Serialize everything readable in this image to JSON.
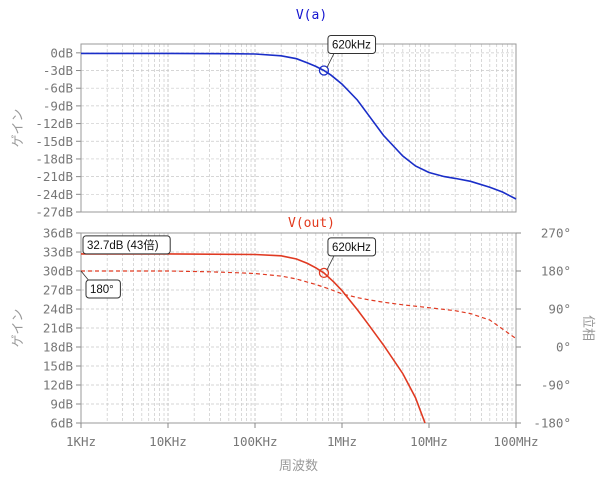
{
  "chart_data": [
    {
      "type": "line",
      "title": "V(a)",
      "title_color": "#1515d0",
      "xscale": "log",
      "xlim": [
        1000,
        100000000
      ],
      "ylim": [
        -27,
        1.5
      ],
      "yticks": [
        0,
        -3,
        -6,
        -9,
        -12,
        -15,
        -18,
        -21,
        -24,
        -27
      ],
      "ytick_labels": [
        "0dB",
        "-3dB",
        "-6dB",
        "-9dB",
        "-12dB",
        "-15dB",
        "-18dB",
        "-21dB",
        "-24dB",
        "-27dB"
      ],
      "ylabel": "ゲイン",
      "grid": true,
      "series": [
        {
          "color": "#1a2ec8",
          "style": "solid",
          "x": [
            1000,
            10000,
            50000,
            100000,
            200000,
            300000,
            400000,
            500000,
            620000,
            750000,
            1000000,
            1500000,
            2000000,
            3000000,
            5000000,
            7000000,
            10000000,
            15000000,
            20000000,
            30000000,
            50000000,
            70000000,
            100000000
          ],
          "values": [
            -0.1,
            -0.1,
            -0.15,
            -0.2,
            -0.5,
            -1.0,
            -1.7,
            -2.3,
            -3.0,
            -3.8,
            -5.3,
            -8.0,
            -10.5,
            -14.0,
            -17.5,
            -19.2,
            -20.3,
            -21.0,
            -21.3,
            -21.8,
            -22.8,
            -23.6,
            -24.8
          ]
        }
      ],
      "annotations": [
        {
          "text": "620kHz",
          "x": 620000,
          "y": -3,
          "marker": "circle"
        }
      ]
    },
    {
      "type": "line",
      "title": "V(out)",
      "title_color": "#e23a1e",
      "xscale": "log",
      "xlim": [
        1000,
        100000000
      ],
      "ylim": [
        6,
        36
      ],
      "yticks": [
        36,
        33,
        30,
        27,
        24,
        21,
        18,
        15,
        12,
        9,
        6
      ],
      "ytick_labels": [
        "36dB",
        "33dB",
        "30dB",
        "27dB",
        "24dB",
        "21dB",
        "18dB",
        "15dB",
        "12dB",
        "9dB",
        "6dB"
      ],
      "ylabel": "ゲイン",
      "y2lim": [
        -180,
        270
      ],
      "y2ticks": [
        270,
        180,
        90,
        0,
        -90,
        -180
      ],
      "y2tick_labels": [
        "270°",
        "180°",
        "90°",
        "0°",
        "-90°",
        "-180°"
      ],
      "y2label": "位相",
      "xticks": [
        1000,
        10000,
        100000,
        1000000,
        10000000,
        100000000
      ],
      "xtick_labels": [
        "1KHz",
        "10KHz",
        "100KHz",
        "1MHz",
        "10MHz",
        "100MHz"
      ],
      "xlabel": "周波数",
      "grid": true,
      "series": [
        {
          "color": "#e03a22",
          "style": "solid",
          "axis": "gain",
          "x": [
            1000,
            10000,
            100000,
            200000,
            300000,
            400000,
            500000,
            620000,
            800000,
            1000000,
            1500000,
            2000000,
            3000000,
            5000000,
            7000000,
            9000000
          ],
          "values": [
            32.7,
            32.7,
            32.6,
            32.4,
            31.9,
            31.2,
            30.5,
            29.7,
            28.3,
            26.9,
            23.9,
            21.6,
            18.3,
            13.8,
            10.0,
            6.0
          ]
        },
        {
          "color": "#e03a22",
          "style": "dashed",
          "axis": "phase",
          "x": [
            1000,
            10000,
            30000,
            60000,
            100000,
            200000,
            300000,
            500000,
            700000,
            1000000,
            1500000,
            2000000,
            3000000,
            5000000,
            10000000,
            20000000,
            30000000,
            50000000,
            100000000
          ],
          "values": [
            180,
            180,
            178,
            176,
            174,
            168,
            161,
            148,
            138,
            126,
            117,
            112,
            106,
            100,
            93,
            86,
            79,
            64,
            20
          ]
        }
      ],
      "annotations": [
        {
          "text": "620kHz",
          "x": 620000,
          "y": 29.7,
          "marker": "circle"
        },
        {
          "text": "32.7dB (43倍)",
          "x": 1000,
          "y": 32.7
        },
        {
          "text": "180°",
          "x": 1000,
          "y": 180,
          "axis": "phase"
        }
      ]
    }
  ]
}
